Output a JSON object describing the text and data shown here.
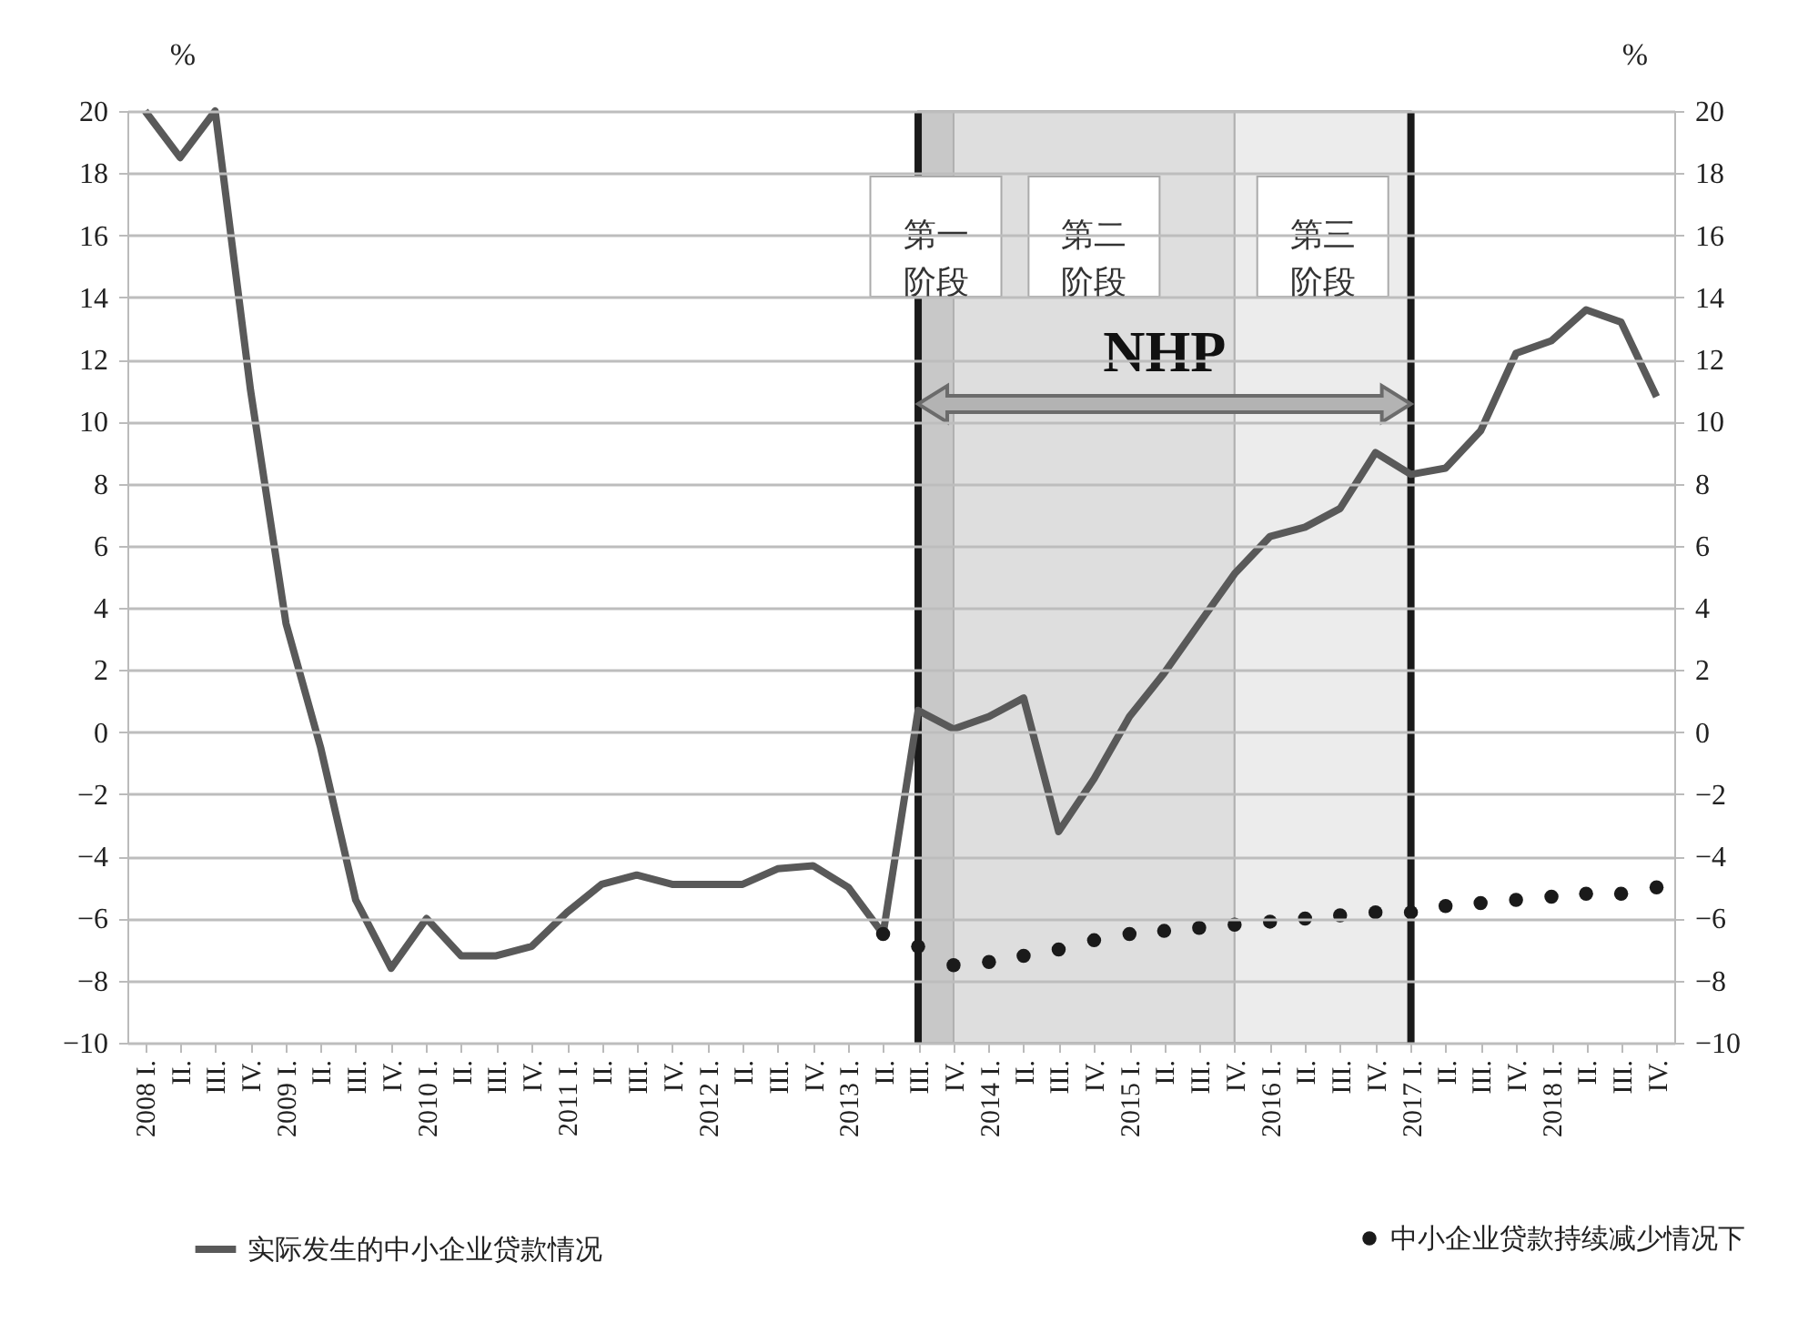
{
  "chart_data": {
    "type": "line",
    "x": [
      "2008-01",
      "2008-04",
      "2008-07",
      "2008-10",
      "2009-01",
      "2009-04",
      "2009-07",
      "2009-10",
      "2010-01",
      "2010-04",
      "2010-07",
      "2010-10",
      "2011-01",
      "2011-04",
      "2011-07",
      "2011-10",
      "2012-01",
      "2012-04",
      "2012-07",
      "2012-10",
      "2013-01",
      "2013-04",
      "2013-07",
      "2013-10",
      "2014-01",
      "2014-04",
      "2014-07",
      "2014-10",
      "2015-01",
      "2015-04",
      "2015-07",
      "2015-10",
      "2016-01",
      "2016-04",
      "2016-07",
      "2016-10",
      "2017-01",
      "2017-04",
      "2017-07",
      "2017-10",
      "2018-01",
      "2018-04",
      "2018-07",
      "2018-10"
    ],
    "series": [
      {
        "name": "实际发生的中小企业贷款情况",
        "color": "#595959",
        "values": [
          20,
          18.5,
          20,
          11,
          3.5,
          -0.5,
          -5.4,
          -7.6,
          -6.0,
          -7.2,
          -7.2,
          -6.9,
          -5.8,
          -4.9,
          -4.6,
          -4.9,
          -4.9,
          -4.9,
          -4.4,
          -4.3,
          -5.0,
          -6.5,
          0.7,
          0.1,
          0.5,
          1.1,
          -3.2,
          -1.5,
          0.5,
          1.9,
          3.5,
          5.1,
          6.3,
          6.6,
          7.2,
          9.0,
          8.3,
          8.5,
          9.7,
          12.2,
          12.6,
          13.6,
          13.2,
          10.8
        ]
      },
      {
        "name": "中小企业贷款持续减少情况下",
        "type": "scatter",
        "marker": "circle",
        "color": "#1a1a1a",
        "values": [
          null,
          null,
          null,
          null,
          null,
          null,
          null,
          null,
          null,
          null,
          null,
          null,
          null,
          null,
          null,
          null,
          null,
          null,
          null,
          null,
          null,
          -6.5,
          -6.9,
          -7.5,
          -7.4,
          -7.2,
          -7.0,
          -6.7,
          -6.5,
          -6.4,
          -6.3,
          -6.2,
          -6.1,
          -6.0,
          -5.9,
          -5.8,
          -5.8,
          -5.6,
          -5.5,
          -5.4,
          -5.3,
          -5.2,
          -5.2,
          -5.0
        ]
      }
    ],
    "xlim": [
      "2007-11-16",
      "2018-11-16"
    ],
    "xticks": [
      {
        "value": "2008-01",
        "label": "2008 I."
      },
      {
        "value": "2008-04",
        "label": "II."
      },
      {
        "value": "2008-07",
        "label": "III."
      },
      {
        "value": "2008-10",
        "label": "IV."
      },
      {
        "value": "2009-01",
        "label": "2009 I."
      },
      {
        "value": "2009-04",
        "label": "II."
      },
      {
        "value": "2009-07",
        "label": "III."
      },
      {
        "value": "2009-10",
        "label": "IV."
      },
      {
        "value": "2010-01",
        "label": "2010 I."
      },
      {
        "value": "2010-04",
        "label": "II."
      },
      {
        "value": "2010-07",
        "label": "III."
      },
      {
        "value": "2010-10",
        "label": "IV."
      },
      {
        "value": "2011-01",
        "label": "2011 I."
      },
      {
        "value": "2011-04",
        "label": "II."
      },
      {
        "value": "2011-07",
        "label": "III."
      },
      {
        "value": "2011-10",
        "label": "IV."
      },
      {
        "value": "2012-01",
        "label": "2012 I."
      },
      {
        "value": "2012-04",
        "label": "II."
      },
      {
        "value": "2012-07",
        "label": "III."
      },
      {
        "value": "2012-10",
        "label": "IV."
      },
      {
        "value": "2013-01",
        "label": "2013 I."
      },
      {
        "value": "2013-04",
        "label": "II."
      },
      {
        "value": "2013-07",
        "label": "III."
      },
      {
        "value": "2013-10",
        "label": "IV."
      },
      {
        "value": "2014-01",
        "label": "2014 I."
      },
      {
        "value": "2014-04",
        "label": "II."
      },
      {
        "value": "2014-07",
        "label": "III."
      },
      {
        "value": "2014-10",
        "label": "IV."
      },
      {
        "value": "2015-01",
        "label": "2015 I."
      },
      {
        "value": "2015-04",
        "label": "II."
      },
      {
        "value": "2015-07",
        "label": "III."
      },
      {
        "value": "2015-10",
        "label": "IV."
      },
      {
        "value": "2016-01",
        "label": "2016 I."
      },
      {
        "value": "2016-04",
        "label": "II."
      },
      {
        "value": "2016-07",
        "label": "III."
      },
      {
        "value": "2016-10",
        "label": "IV."
      },
      {
        "value": "2017-01",
        "label": "2017 I."
      },
      {
        "value": "2017-04",
        "label": "II."
      },
      {
        "value": "2017-07",
        "label": "III."
      },
      {
        "value": "2017-10",
        "label": "IV."
      },
      {
        "value": "2018-01",
        "label": "2018 I."
      },
      {
        "value": "2018-04",
        "label": "II."
      },
      {
        "value": "2018-07",
        "label": "III."
      },
      {
        "value": "2018-10",
        "label": "IV."
      }
    ],
    "ylabel": "%",
    "y2label": "%",
    "ylim": [
      -10,
      20
    ],
    "yticks": [
      -10,
      -8,
      -6,
      -4,
      -2,
      0,
      2,
      4,
      6,
      8,
      10,
      12,
      14,
      16,
      18,
      20
    ],
    "y2lim": [
      -10,
      20
    ],
    "y2ticks": [
      -10,
      -8,
      -6,
      -4,
      -2,
      0,
      2,
      4,
      6,
      8,
      10,
      12,
      14,
      16,
      18,
      20
    ],
    "grid": "y",
    "legend": "bottom",
    "ref_lines": [
      {
        "axis": "x",
        "value": "2013-07",
        "color": "#1a1a1a"
      },
      {
        "axis": "x",
        "value": "2017-01",
        "color": "#1a1a1a"
      }
    ],
    "bands": [
      {
        "axis": "x",
        "from": "2013-07",
        "to": "2013-10",
        "label": "第一阶段",
        "color": "#c8c8c8"
      },
      {
        "axis": "x",
        "from": "2013-10",
        "to": "2015-10",
        "label": "第二阶段",
        "color": "#dedede"
      },
      {
        "axis": "x",
        "from": "2015-10",
        "to": "2017-01",
        "label": "第三阶段",
        "color": "#ececec"
      }
    ],
    "annotations": [
      "NHP"
    ]
  }
}
